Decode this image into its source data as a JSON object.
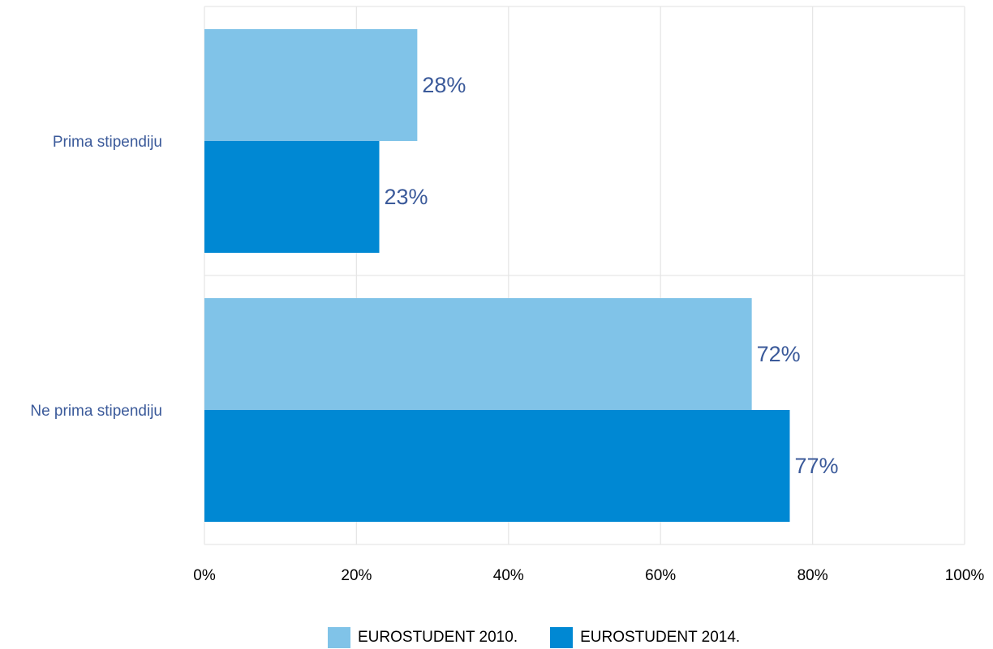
{
  "chart_data": {
    "type": "bar",
    "orientation": "horizontal",
    "categories": [
      "Prima stipendiju",
      "Ne prima stipendiju"
    ],
    "series": [
      {
        "name": "EUROSTUDENT 2010.",
        "values": [
          28,
          72
        ],
        "labels": [
          "28%",
          "72%"
        ],
        "color": "#80c3e8"
      },
      {
        "name": "EUROSTUDENT 2014.",
        "values": [
          23,
          77
        ],
        "labels": [
          "23%",
          "77%"
        ],
        "color": "#0088d3"
      }
    ],
    "xlim": [
      0,
      100
    ],
    "xticks": [
      0,
      20,
      40,
      60,
      80,
      100
    ],
    "xtick_labels": [
      "0%",
      "20%",
      "40%",
      "60%",
      "80%",
      "100%"
    ],
    "grid": true,
    "legend_position": "bottom",
    "label_color": "#3b5a9a"
  }
}
